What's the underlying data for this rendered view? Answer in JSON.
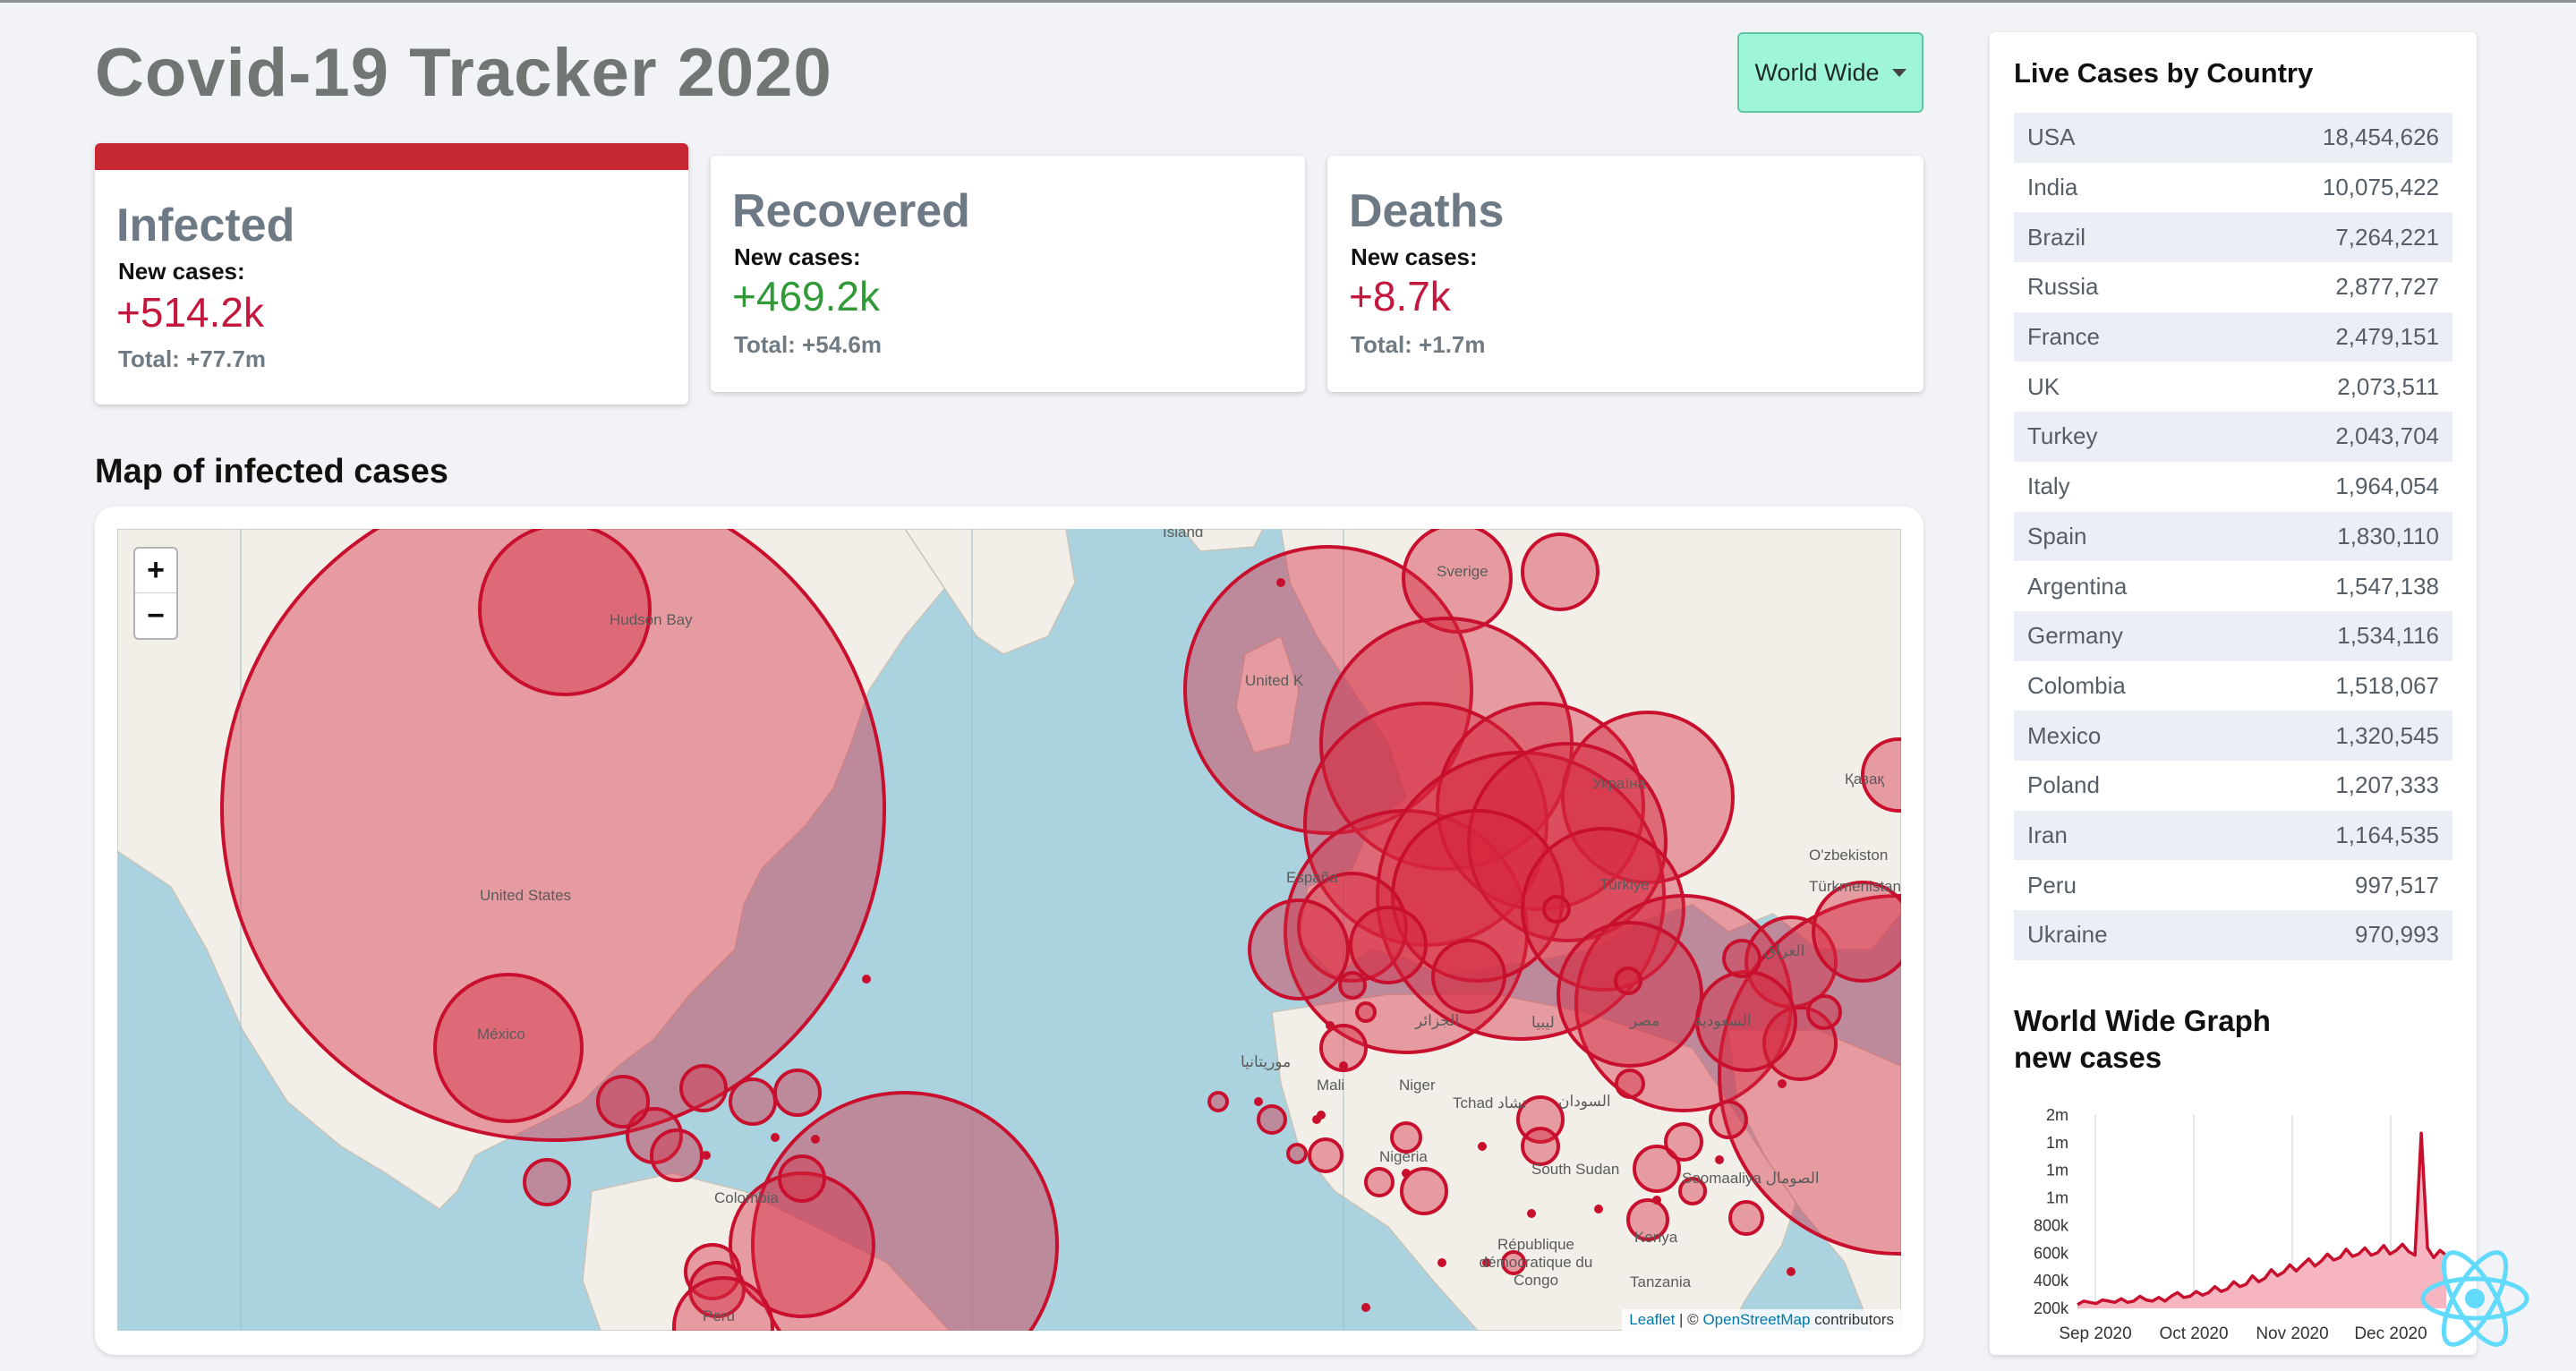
{
  "app": {
    "title": "Covid-19 Tracker 2020",
    "region_select": {
      "selected": "World Wide"
    }
  },
  "stats": {
    "infected": {
      "title": "Infected",
      "new_label": "New cases:",
      "new_value": "+514.2k",
      "total": "Total: +77.7m",
      "color": "#c4173e",
      "accent": "#c72733"
    },
    "recovered": {
      "title": "Recovered",
      "new_label": "New cases:",
      "new_value": "+469.2k",
      "total": "Total: +54.6m",
      "color": "#2f9a37"
    },
    "deaths": {
      "title": "Deaths",
      "new_label": "New cases:",
      "new_value": "+8.7k",
      "total": "Total: +1.7m",
      "color": "#c4173e"
    }
  },
  "map": {
    "section_title": "Map of infected cases",
    "zoom_in": "+",
    "zoom_out": "−",
    "attribution": {
      "leaflet": "Leaflet",
      "separator": " | © ",
      "osm": "OpenStreetMap",
      "suffix": " contributors"
    },
    "labels": {
      "us": "United States",
      "mexico": "México",
      "colombia": "Colombia",
      "peru": "Perú",
      "uk": "United K",
      "sverige": "Sverige",
      "espana": "España",
      "turkey": "Türkiye",
      "ukraine": "Україна",
      "mali": "Mali",
      "niger": "Niger",
      "tchad": "Tchad تشاد",
      "soudan": "السودان",
      "south_sudan": "South Sudan",
      "somalia": "Soomaaliya الصومال",
      "nigeria": "Nigeria",
      "rdc": "République démocratique du Congo",
      "kenya": "Kenya",
      "tanzania": "Tanzania",
      "saudi": "السعودية",
      "turkmen": "Türkmenistan",
      "ozbek": "O'zbekiston",
      "kazak": "Қазақ",
      "iraq": "العراق",
      "libya": "ليبيا",
      "algeria": "الجزائر",
      "egypt": "مصر",
      "mauritania": "موريتانيا",
      "hudson": "Hudson Bay",
      "island": "Ísland"
    },
    "marker_colors": {
      "fill": "#d7263d",
      "stroke": "#c8102e"
    }
  },
  "live_cases": {
    "title": "Live Cases by Country",
    "rows": [
      {
        "country": "USA",
        "cases": "18,454,626"
      },
      {
        "country": "India",
        "cases": "10,075,422"
      },
      {
        "country": "Brazil",
        "cases": "7,264,221"
      },
      {
        "country": "Russia",
        "cases": "2,877,727"
      },
      {
        "country": "France",
        "cases": "2,479,151"
      },
      {
        "country": "UK",
        "cases": "2,073,511"
      },
      {
        "country": "Turkey",
        "cases": "2,043,704"
      },
      {
        "country": "Italy",
        "cases": "1,964,054"
      },
      {
        "country": "Spain",
        "cases": "1,830,110"
      },
      {
        "country": "Argentina",
        "cases": "1,547,138"
      },
      {
        "country": "Germany",
        "cases": "1,534,116"
      },
      {
        "country": "Colombia",
        "cases": "1,518,067"
      },
      {
        "country": "Mexico",
        "cases": "1,320,545"
      },
      {
        "country": "Poland",
        "cases": "1,207,333"
      },
      {
        "country": "Iran",
        "cases": "1,164,535"
      },
      {
        "country": "Peru",
        "cases": "997,517"
      },
      {
        "country": "Ukraine",
        "cases": "970,993"
      }
    ]
  },
  "graph": {
    "title_line1": "World Wide Graph",
    "title_line2": "new cases"
  },
  "chart_data": {
    "type": "area",
    "x_labels": [
      "Sep 2020",
      "Oct 2020",
      "Nov 2020",
      "Dec 2020"
    ],
    "y_ticks": [
      "2m",
      "1m",
      "1m",
      "1m",
      "800k",
      "600k",
      "400k",
      "200k"
    ],
    "ylim": [
      200000,
      1800000
    ],
    "series": [
      {
        "values": [
          230000,
          260000,
          250000,
          240000,
          270000,
          260000,
          250000,
          280000,
          250000,
          260000,
          300000,
          270000,
          260000,
          290000,
          260000,
          300000,
          330000,
          290000,
          300000,
          340000,
          310000,
          330000,
          380000,
          340000,
          360000,
          420000,
          380000,
          400000,
          470000,
          420000,
          450000,
          520000,
          470000,
          500000,
          560000,
          510000,
          560000,
          610000,
          550000,
          590000,
          650000,
          600000,
          620000,
          690000,
          630000,
          650000,
          700000,
          640000,
          660000,
          720000,
          650000,
          680000,
          730000,
          670000,
          640000,
          1650000,
          700000,
          620000,
          680000,
          640000
        ]
      }
    ],
    "colors": {
      "line": "#c8102e",
      "fill": "#f7b5c2"
    },
    "grid": "vertical"
  }
}
